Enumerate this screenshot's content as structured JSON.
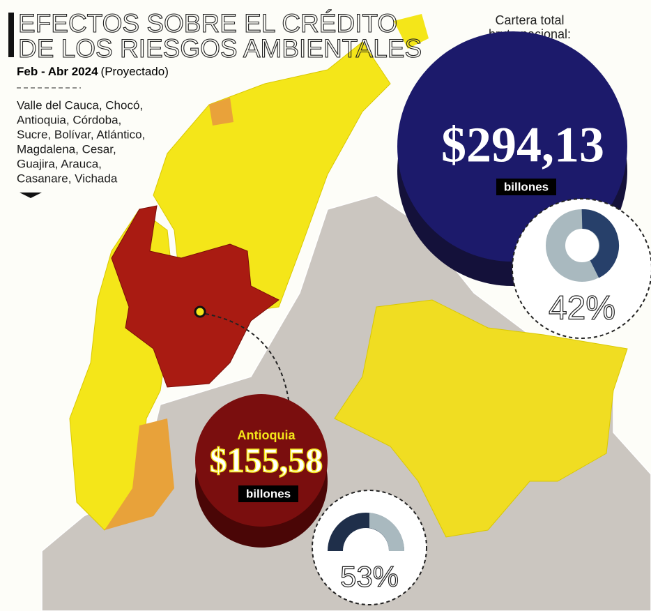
{
  "header": {
    "title_lines": [
      "EFECTOS SOBRE EL CRÉDITO",
      "DE LOS RIESGOS AMBIENTALES"
    ],
    "period": "Feb - Abr 2024",
    "note": "(Proyectado)"
  },
  "regions": {
    "lines": [
      "Valle del Cauca, Chocó,",
      "Antioquia, Córdoba,",
      "Sucre, Bolívar, Atlántico,",
      "Magdalena, Cesar,",
      "Guajira, Arauca,",
      "Casanare, Vichada"
    ]
  },
  "national": {
    "label_lines": [
      "Cartera total",
      "bruta nacional:"
    ],
    "value": "$294,13",
    "unit": "billones",
    "share": "42%"
  },
  "antioquia": {
    "name": "Antioquia",
    "value": "$155,58",
    "unit": "billones",
    "share": "53%"
  }
}
